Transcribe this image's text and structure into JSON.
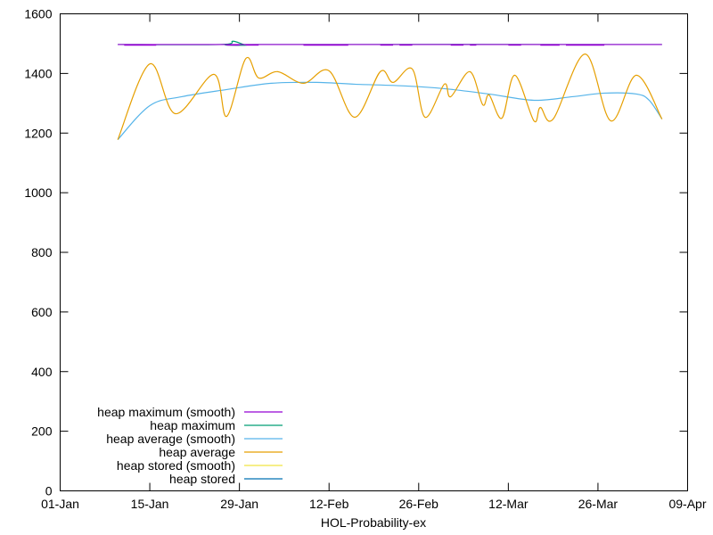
{
  "chart_data": {
    "type": "line",
    "title": "",
    "xlabel": "HOL-Probability-ex",
    "ylabel": "",
    "ylim": [
      0,
      1600
    ],
    "yticks": [
      "0",
      "200",
      "400",
      "600",
      "800",
      "1000",
      "1200",
      "1400",
      "1600"
    ],
    "xlim": [
      "01-Jan",
      "09-Apr"
    ],
    "xticks": [
      "01-Jan",
      "15-Jan",
      "29-Jan",
      "12-Feb",
      "26-Feb",
      "12-Mar",
      "26-Mar",
      "09-Apr"
    ],
    "grid": false,
    "legend_position": "bottom-left",
    "series": [
      {
        "name": "heap maximum (smooth)",
        "color": "#9400d3",
        "points": [
          [
            "Jan 10",
            1497
          ],
          [
            "Apr 5",
            1497
          ]
        ]
      },
      {
        "name": "heap maximum",
        "color": "#009e73",
        "points": [
          [
            "Jan 10",
            1497
          ],
          [
            "Jan 26",
            1497
          ],
          [
            "Jan 28",
            1508
          ],
          [
            "Jan 30",
            1495
          ],
          [
            "Feb 1",
            1497
          ],
          [
            "Apr 5",
            1497
          ]
        ]
      },
      {
        "name": "heap average (smooth)",
        "color": "#56b4e9",
        "points": [
          [
            "Jan 10",
            1178
          ],
          [
            "Jan 15",
            1292
          ],
          [
            "Jan 20",
            1322
          ],
          [
            "Jan 27",
            1346
          ],
          [
            "Feb 3",
            1367
          ],
          [
            "Feb 10",
            1370
          ],
          [
            "Feb 16",
            1364
          ],
          [
            "Feb 24",
            1358
          ],
          [
            "Mar 2",
            1349
          ],
          [
            "Mar 9",
            1331
          ],
          [
            "Mar 16",
            1310
          ],
          [
            "Mar 22",
            1322
          ],
          [
            "Mar 27",
            1334
          ],
          [
            "Apr 1",
            1331
          ],
          [
            "Apr 3",
            1310
          ],
          [
            "Apr 5",
            1247
          ]
        ]
      },
      {
        "name": "heap average",
        "color": "#e69f00",
        "points": [
          [
            "Jan 10",
            1178
          ],
          [
            "Jan 15",
            1432
          ],
          [
            "Jan 19",
            1265
          ],
          [
            "Jan 25",
            1397
          ],
          [
            "Jan 27",
            1256
          ],
          [
            "Jan 30",
            1450
          ],
          [
            "Feb 1",
            1385
          ],
          [
            "Feb 4",
            1406
          ],
          [
            "Feb 8",
            1367
          ],
          [
            "Feb 12",
            1409
          ],
          [
            "Feb 16",
            1253
          ],
          [
            "Feb 20",
            1406
          ],
          [
            "Feb 22",
            1370
          ],
          [
            "Feb 25",
            1415
          ],
          [
            "Feb 27",
            1253
          ],
          [
            "Mar 2",
            1364
          ],
          [
            "Mar 3",
            1322
          ],
          [
            "Mar 6",
            1406
          ],
          [
            "Mar 8",
            1295
          ],
          [
            "Mar 9",
            1328
          ],
          [
            "Mar 11",
            1250
          ],
          [
            "Mar 13",
            1394
          ],
          [
            "Mar 16",
            1241
          ],
          [
            "Mar 17",
            1286
          ],
          [
            "Mar 19",
            1247
          ],
          [
            "Mar 24",
            1465
          ],
          [
            "Mar 28",
            1241
          ],
          [
            "Apr 1",
            1394
          ],
          [
            "Apr 5",
            1247
          ]
        ]
      },
      {
        "name": "heap stored (smooth)",
        "color": "#f0e442",
        "points": []
      },
      {
        "name": "heap stored",
        "color": "#0072b2",
        "points": []
      }
    ]
  }
}
